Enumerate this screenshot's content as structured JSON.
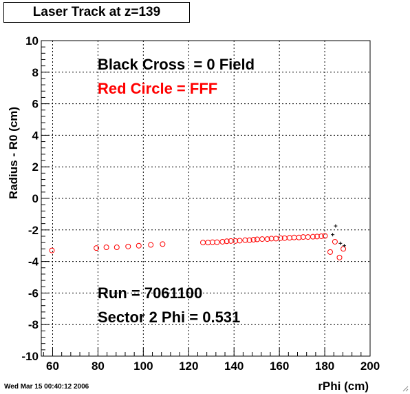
{
  "title": "Laser Track at z=139",
  "timestamp": "Wed Mar 15 00:40:12 2006",
  "colors": {
    "black_cross": "#000000",
    "red_circle": "#ff0000",
    "grid": "#000000",
    "frame": "#000000"
  },
  "chart_data": {
    "type": "scatter",
    "title": "Laser Track at z=139",
    "xlabel": "rPhi (cm)",
    "ylabel": "Radius - R0 (cm)",
    "xlim": [
      55,
      200
    ],
    "ylim": [
      -10,
      10
    ],
    "x_ticks": [
      60,
      80,
      100,
      120,
      140,
      160,
      180,
      200
    ],
    "y_ticks": [
      -10,
      -8,
      -6,
      -4,
      -2,
      0,
      2,
      4,
      6,
      8,
      10
    ],
    "grid": true,
    "annotations": [
      {
        "text": "Black Cross  = 0 Field",
        "color": "#000000"
      },
      {
        "text": "Red Circle = FFF",
        "color": "#ff0000"
      },
      {
        "text": "Run = 7061100",
        "color": "#000000"
      },
      {
        "text": "Sector 2 Phi = 0.531",
        "color": "#000000"
      }
    ],
    "series": [
      {
        "name": "Red Circle = FFF",
        "marker": "circle",
        "color": "#ff0000",
        "points": [
          [
            59.7,
            -3.3
          ],
          [
            79.3,
            -3.15
          ],
          [
            83.7,
            -3.1
          ],
          [
            88.3,
            -3.1
          ],
          [
            93.3,
            -3.05
          ],
          [
            98.0,
            -3.0
          ],
          [
            103.3,
            -2.95
          ],
          [
            108.5,
            -2.9
          ],
          [
            126.3,
            -2.8
          ],
          [
            128.5,
            -2.8
          ],
          [
            130.5,
            -2.78
          ],
          [
            132.5,
            -2.78
          ],
          [
            134.9,
            -2.75
          ],
          [
            136.8,
            -2.72
          ],
          [
            138.6,
            -2.7
          ],
          [
            140.6,
            -2.7
          ],
          [
            142.5,
            -2.68
          ],
          [
            144.9,
            -2.65
          ],
          [
            146.8,
            -2.65
          ],
          [
            148.6,
            -2.62
          ],
          [
            150.2,
            -2.6
          ],
          [
            152.4,
            -2.58
          ],
          [
            154.7,
            -2.58
          ],
          [
            156.5,
            -2.55
          ],
          [
            158.5,
            -2.55
          ],
          [
            160.5,
            -2.52
          ],
          [
            162.3,
            -2.52
          ],
          [
            164.5,
            -2.5
          ],
          [
            166.5,
            -2.48
          ],
          [
            168.6,
            -2.48
          ],
          [
            170.5,
            -2.45
          ],
          [
            172.6,
            -2.45
          ],
          [
            174.8,
            -2.43
          ],
          [
            176.6,
            -2.42
          ],
          [
            178.5,
            -2.4
          ],
          [
            180.1,
            -2.38
          ],
          [
            182.4,
            -3.4
          ],
          [
            184.5,
            -2.75
          ],
          [
            186.5,
            -3.75
          ],
          [
            188.2,
            -3.2
          ]
        ]
      },
      {
        "name": "Black Cross  = 0 Field",
        "marker": "cross",
        "color": "#000000",
        "points": [
          [
            183.5,
            -2.3
          ],
          [
            184.8,
            -1.75
          ],
          [
            186.9,
            -2.85
          ],
          [
            188.6,
            -3.0
          ]
        ]
      }
    ]
  }
}
